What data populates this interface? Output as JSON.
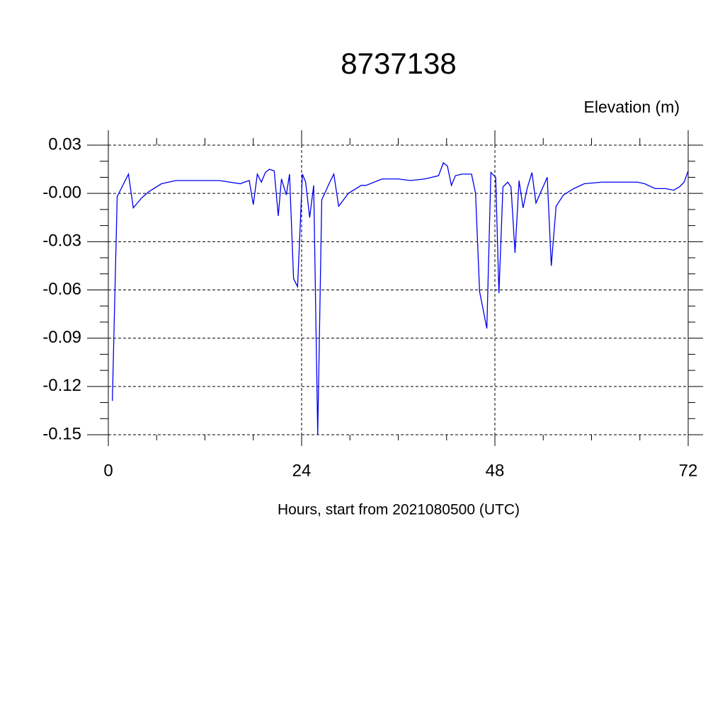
{
  "chart_data": {
    "type": "line",
    "title": "8737138",
    "ylabel": "Elevation (m)",
    "xlabel": "Hours, start from 2021080500 (UTC)",
    "x": [
      0.5,
      1.1,
      2.5,
      3.1,
      4.1,
      5.0,
      6.6,
      8.4,
      9.6,
      10.1,
      12,
      13.8,
      16.4,
      16.9,
      17.5,
      18,
      18.5,
      19,
      19.5,
      20,
      20.6,
      21.1,
      21.5,
      22.1,
      22.5,
      23,
      23.5,
      24.1,
      24.5,
      25,
      25.5,
      26,
      26.5,
      27.5,
      28,
      28.6,
      29.8,
      31.4,
      32,
      34,
      36,
      37.5,
      39.3,
      41,
      41.6,
      42.1,
      42.6,
      43.1,
      43.9,
      44.6,
      45.1,
      45.6,
      46.1,
      47.0,
      47.5,
      48.1,
      48.5,
      49,
      49.6,
      50,
      50.5,
      51,
      51.5,
      52,
      52.6,
      53.1,
      54.5,
      55,
      55.6,
      56.5,
      57.8,
      59.1,
      61.3,
      63.9,
      65.7,
      66.6,
      67.9,
      69.2,
      70.2,
      70.9,
      71.5,
      72
    ],
    "series": [
      {
        "name": "Elevation",
        "color": "#0000ee",
        "values": [
          -0.129,
          -0.002,
          0.012,
          -0.009,
          -0.003,
          0.001,
          0.006,
          0.008,
          0.008,
          0.008,
          0.008,
          0.008,
          0.006,
          0.007,
          0.008,
          -0.007,
          0.012,
          0.007,
          0.013,
          0.015,
          0.014,
          -0.014,
          0.009,
          -0.001,
          0.012,
          -0.053,
          -0.058,
          0.012,
          0.007,
          -0.015,
          0.005,
          -0.15,
          -0.004,
          0.007,
          0.012,
          -0.008,
          0,
          0.005,
          0.005,
          0.009,
          0.009,
          0.008,
          0.009,
          0.011,
          0.019,
          0.017,
          0.005,
          0.011,
          0.012,
          0.012,
          0.012,
          0.0,
          -0.061,
          -0.084,
          0.013,
          0.01,
          -0.062,
          0.004,
          0.007,
          0.004,
          -0.037,
          0.008,
          -0.009,
          0.003,
          0.013,
          -0.006,
          0.01,
          -0.045,
          -0.008,
          -0.001,
          0.003,
          0.006,
          0.007,
          0.007,
          0.007,
          0.006,
          0.003,
          0.003,
          0.002,
          0.004,
          0.007,
          0.014
        ]
      }
    ],
    "xlim": [
      0,
      72
    ],
    "xticks": [
      0,
      24,
      48,
      72
    ],
    "xminor_ticks": [
      6,
      12,
      18,
      30,
      36,
      42,
      54,
      60,
      66
    ],
    "ylim": [
      -0.15,
      0.03
    ],
    "yticks": [
      0.03,
      {
        "value": 0,
        "label": "-0.00"
      },
      -0.03,
      -0.06,
      -0.09,
      -0.12,
      -0.15
    ],
    "yminor_ticks": [
      0.02,
      0.01,
      -0.01,
      -0.02,
      -0.04,
      -0.05,
      -0.07,
      -0.08,
      -0.1,
      -0.11,
      -0.13,
      -0.14
    ],
    "grid": true
  }
}
